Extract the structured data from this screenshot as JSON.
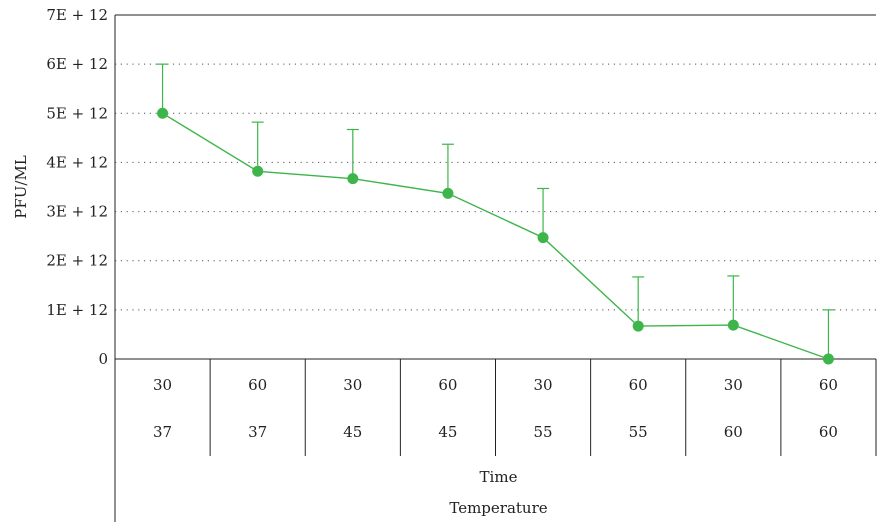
{
  "chart_data": {
    "type": "line",
    "ylabel": "PFU/ML",
    "yticks": [
      {
        "value": 0,
        "label": "0"
      },
      {
        "value": 1000000000000.0,
        "label": "1E + 12"
      },
      {
        "value": 2000000000000.0,
        "label": "2E + 12"
      },
      {
        "value": 3000000000000.0,
        "label": "3E + 12"
      },
      {
        "value": 4000000000000.0,
        "label": "4E + 12"
      },
      {
        "value": 5000000000000.0,
        "label": "5E + 12"
      },
      {
        "value": 6000000000000.0,
        "label": "6E + 12"
      },
      {
        "value": 7000000000000.0,
        "label": "7E + 12"
      }
    ],
    "ylim": [
      0,
      7000000000000.0
    ],
    "grid": "horizontal dotted",
    "x_level_titles": [
      "Time",
      "Temperature"
    ],
    "categories": [
      {
        "time": "30",
        "temperature": "37"
      },
      {
        "time": "60",
        "temperature": "37"
      },
      {
        "time": "30",
        "temperature": "45"
      },
      {
        "time": "60",
        "temperature": "45"
      },
      {
        "time": "30",
        "temperature": "55"
      },
      {
        "time": "60",
        "temperature": "55"
      },
      {
        "time": "30",
        "temperature": "60"
      },
      {
        "time": "60",
        "temperature": "60"
      }
    ],
    "series": [
      {
        "color": "#3db54a",
        "values": [
          5000000000000.0,
          3820000000000.0,
          3670000000000.0,
          3370000000000.0,
          2470000000000.0,
          670000000000.0,
          690000000000.0,
          0.0
        ],
        "error_upper": [
          1000000000000.0,
          1000000000000.0,
          1000000000000.0,
          1000000000000.0,
          1000000000000.0,
          1000000000000.0,
          1000000000000.0,
          1000000000000.0
        ]
      }
    ]
  }
}
